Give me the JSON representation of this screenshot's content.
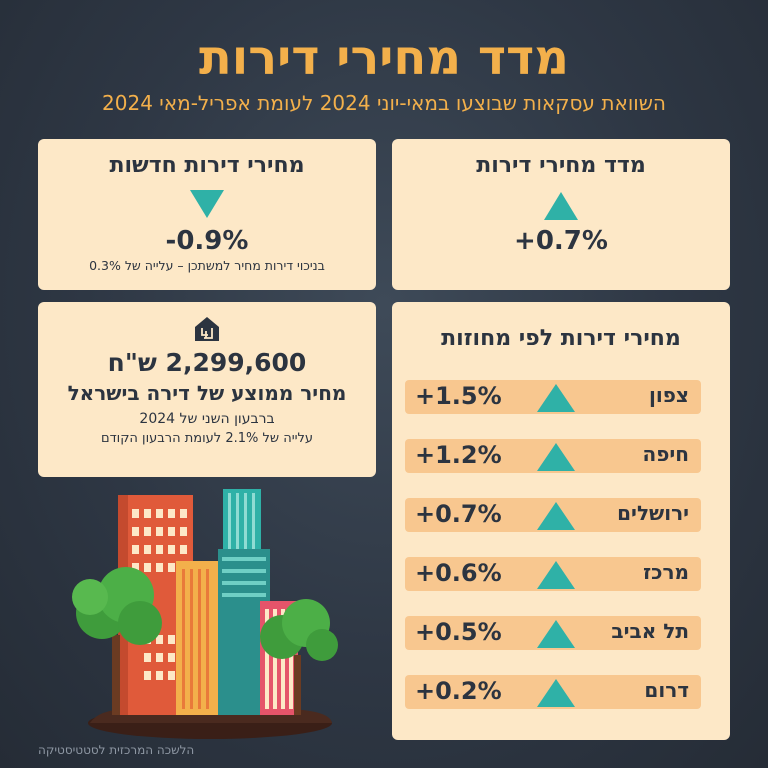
{
  "title": "מדד מחירי דירות",
  "subtitle": "השוואת עסקאות שבוצעו במאי-יוני 2024 לעומת אפריל-מאי 2024",
  "index_card": {
    "title": "מדד מחירי דירות",
    "value": "+0.7%"
  },
  "new_card": {
    "title": "מחירי דירות חדשות",
    "value": "-0.9%",
    "note": "בניכוי דירות מחיר למשתכן – עלייה של 0.3%"
  },
  "avg_card": {
    "price": "2,299,600 ש\"ח",
    "label": "מחיר ממוצע של דירה בישראל",
    "period": "ברבעון השני של 2024",
    "change": "עלייה של 2.1% לעומת הרבעון הקודם"
  },
  "regions_card": {
    "title": "מחירי דירות לפי מחוזות",
    "regions": [
      {
        "name": "צפון",
        "value": "+1.5%"
      },
      {
        "name": "חיפה",
        "value": "+1.2%"
      },
      {
        "name": "ירושלים",
        "value": "+0.7%"
      },
      {
        "name": "מרכז",
        "value": "+0.6%"
      },
      {
        "name": "תל אביב",
        "value": "+0.5%"
      },
      {
        "name": "דרום",
        "value": "+0.2%"
      }
    ]
  },
  "footer": "הלשכה המרכזית לסטטיסטיקה",
  "colors": {
    "accent": "#f3b04b",
    "card": "#fde8c7",
    "row": "#f8c78f",
    "arrow": "#2fb1a7",
    "background": "#2e3744"
  },
  "icons": [
    "house-shekel-icon",
    "up-triangle-icon",
    "down-triangle-icon",
    "city-buildings-illustration"
  ]
}
